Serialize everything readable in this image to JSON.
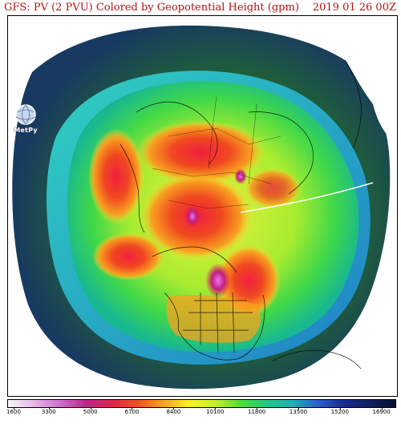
{
  "header": {
    "title": "GFS: PV (2 PVU) Colored by Geopotential Height (gpm)",
    "valid_time": "2019 01 26 00Z"
  },
  "logo": {
    "text": "MetPy",
    "icon": "globe-icon"
  },
  "map": {
    "projection": "polar-stereographic",
    "field": "PV (2 PVU)"
  },
  "colorbar": {
    "min": 1600,
    "max": 17500,
    "tick_labels": [
      "1600",
      "3300",
      "5000",
      "6700",
      "8400",
      "10100",
      "11800",
      "13500",
      "15200",
      "16900"
    ],
    "tick_values": [
      1600,
      3300,
      5000,
      6700,
      8400,
      10100,
      11800,
      13500,
      15200,
      16900
    ],
    "colors": [
      "#f6f6f6",
      "#e8b8e8",
      "#d070d0",
      "#b8288c",
      "#e0204a",
      "#f05020",
      "#f8a020",
      "#f8f020",
      "#c8f028",
      "#50e030",
      "#20c880",
      "#20b0b8",
      "#2860c8",
      "#1a2a90",
      "#102060",
      "#081030"
    ]
  }
}
